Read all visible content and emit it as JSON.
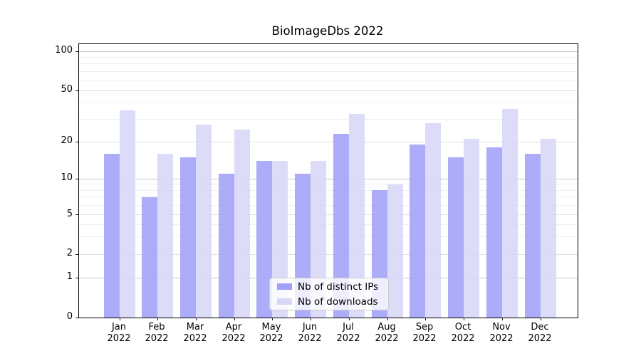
{
  "chart_data": {
    "type": "bar",
    "title": "BioImageDbs 2022",
    "categories": [
      "Jan 2022",
      "Feb 2022",
      "Mar 2022",
      "Apr 2022",
      "May 2022",
      "Jun 2022",
      "Jul 2022",
      "Aug 2022",
      "Sep 2022",
      "Oct 2022",
      "Nov 2022",
      "Dec 2022"
    ],
    "series": [
      {
        "name": "Nb of distinct IPs",
        "color": "#a0a0f7",
        "values": [
          16,
          7,
          15,
          11,
          14,
          11,
          23,
          8,
          19,
          15,
          18,
          16
        ]
      },
      {
        "name": "Nb of downloads",
        "color": "#d7d7f8",
        "values": [
          35,
          16,
          27,
          25,
          14,
          14,
          33,
          9,
          28,
          21,
          36,
          21
        ]
      }
    ],
    "xlabel": "",
    "ylabel": "",
    "yscale": "symlog",
    "yticks": [
      0,
      1,
      2,
      5,
      10,
      20,
      50,
      100
    ],
    "ylim": [
      0,
      113
    ],
    "grid": true,
    "legend_position": "lower center",
    "grid_colors": {
      "decade": "#c8c8c8",
      "labeled": "#e0e0e0",
      "minor": "#efefef"
    }
  }
}
